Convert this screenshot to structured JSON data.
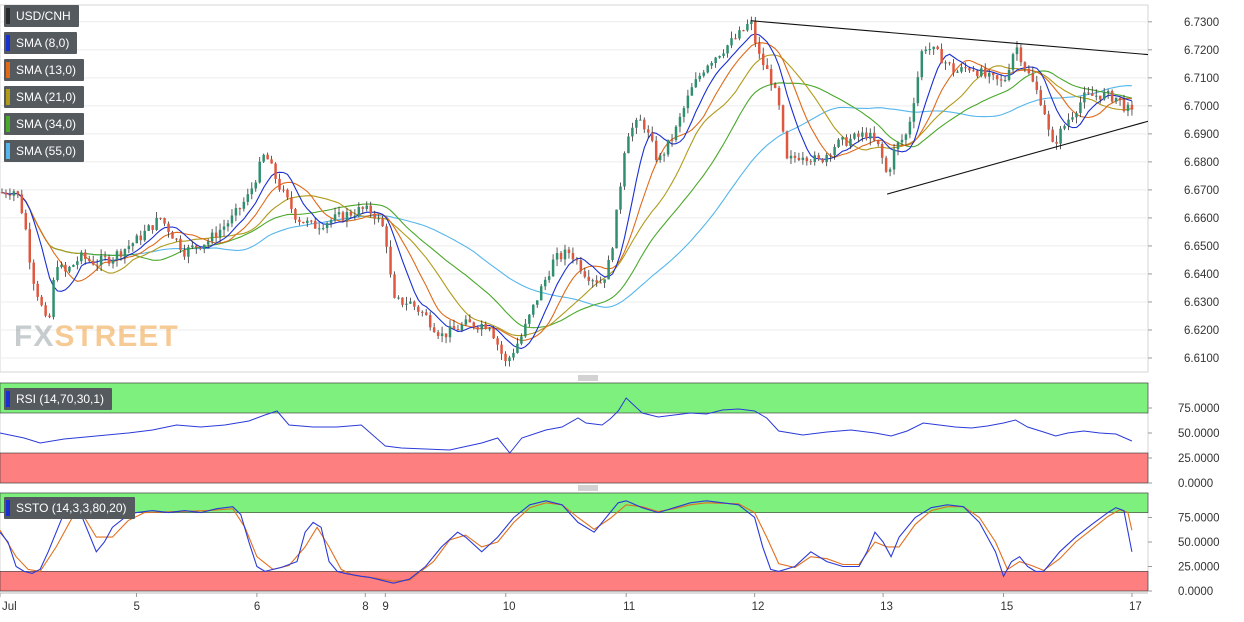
{
  "chart_data": {
    "type": "candlestick",
    "symbol": "USD/CNH",
    "legend": [
      "USD/CNH",
      "SMA (8,0)",
      "SMA (13,0)",
      "SMA (21,0)",
      "SMA (34,0)",
      "SMA (55,0)"
    ],
    "sma_colors": {
      "SMA (8,0)": "#1a2fd0",
      "SMA (13,0)": "#e06a1a",
      "SMA (21,0)": "#b09a1a",
      "SMA (34,0)": "#4aa82a",
      "SMA (55,0)": "#56b6ec"
    },
    "price_axis": {
      "min": 6.605,
      "max": 6.736,
      "ticks": [
        "6.7300",
        "6.7200",
        "6.7100",
        "6.7000",
        "6.6900",
        "6.6800",
        "6.6700",
        "6.6600",
        "6.6500",
        "6.6400",
        "6.6300",
        "6.6200",
        "6.6100"
      ]
    },
    "x_axis": {
      "labels": [
        "Jul",
        "5",
        "6",
        "8",
        "9",
        "10",
        "11",
        "12",
        "13",
        "15",
        "17"
      ],
      "positions": [
        0,
        17,
        32,
        45.5,
        48,
        63,
        78,
        94,
        110,
        125,
        141
      ],
      "range": [
        0,
        143
      ]
    },
    "price_path": [
      [
        0,
        6.669
      ],
      [
        2,
        6.67
      ],
      [
        3,
        6.66
      ],
      [
        4,
        6.64
      ],
      [
        5,
        6.63
      ],
      [
        6,
        6.62
      ],
      [
        7,
        6.645
      ],
      [
        8,
        6.64
      ],
      [
        10,
        6.646
      ],
      [
        12,
        6.644
      ],
      [
        14,
        6.646
      ],
      [
        17,
        6.652
      ],
      [
        20,
        6.66
      ],
      [
        23,
        6.648
      ],
      [
        26,
        6.652
      ],
      [
        29,
        6.66
      ],
      [
        31,
        6.668
      ],
      [
        33,
        6.683
      ],
      [
        35,
        6.67
      ],
      [
        37,
        6.66
      ],
      [
        39,
        6.657
      ],
      [
        42,
        6.66
      ],
      [
        45,
        6.663
      ],
      [
        46.5,
        6.662
      ],
      [
        48,
        6.655
      ],
      [
        49,
        6.63
      ],
      [
        51,
        6.63
      ],
      [
        53,
        6.625
      ],
      [
        55,
        6.618
      ],
      [
        58,
        6.622
      ],
      [
        61,
        6.622
      ],
      [
        62,
        6.615
      ],
      [
        63,
        6.608
      ],
      [
        65,
        6.618
      ],
      [
        67,
        6.632
      ],
      [
        69,
        6.645
      ],
      [
        71,
        6.648
      ],
      [
        73,
        6.64
      ],
      [
        75,
        6.637
      ],
      [
        76,
        6.645
      ],
      [
        77,
        6.665
      ],
      [
        78,
        6.69
      ],
      [
        80,
        6.695
      ],
      [
        82,
        6.68
      ],
      [
        84,
        6.69
      ],
      [
        86,
        6.705
      ],
      [
        88,
        6.715
      ],
      [
        90,
        6.72
      ],
      [
        92,
        6.725
      ],
      [
        93.5,
        6.73
      ],
      [
        94.5,
        6.718
      ],
      [
        96,
        6.71
      ],
      [
        97,
        6.7
      ],
      [
        98,
        6.68
      ],
      [
        100,
        6.683
      ],
      [
        102,
        6.68
      ],
      [
        104,
        6.686
      ],
      [
        106,
        6.688
      ],
      [
        108,
        6.69
      ],
      [
        109.5,
        6.685
      ],
      [
        110.5,
        6.675
      ],
      [
        111.5,
        6.685
      ],
      [
        113,
        6.69
      ],
      [
        114,
        6.705
      ],
      [
        115,
        6.722
      ],
      [
        117,
        6.718
      ],
      [
        119,
        6.712
      ],
      [
        121,
        6.714
      ],
      [
        123,
        6.71
      ],
      [
        125,
        6.708
      ],
      [
        126.5,
        6.722
      ],
      [
        128,
        6.712
      ],
      [
        130,
        6.7
      ],
      [
        131,
        6.685
      ],
      [
        133,
        6.695
      ],
      [
        135,
        6.703
      ],
      [
        137,
        6.704
      ],
      [
        139,
        6.703
      ],
      [
        141,
        6.697
      ]
    ],
    "trendlines": [
      {
        "from": [
          93.5,
          6.7304
        ],
        "to": [
          143,
          6.7183
        ]
      },
      {
        "from": [
          110.5,
          6.6685
        ],
        "to": [
          143,
          6.6945
        ]
      }
    ],
    "rsi": {
      "label": "RSI (14,70,30,1)",
      "ticks": [
        "75.0000",
        "50.0000",
        "25.0000",
        "0.0000"
      ],
      "range": [
        0,
        100
      ],
      "upper": 70,
      "lower": 30,
      "path": [
        [
          0,
          50
        ],
        [
          3,
          45
        ],
        [
          5,
          40
        ],
        [
          8,
          44
        ],
        [
          12,
          47
        ],
        [
          16,
          50
        ],
        [
          19,
          53
        ],
        [
          22,
          58
        ],
        [
          25,
          56
        ],
        [
          28,
          58
        ],
        [
          31,
          62
        ],
        [
          33,
          68
        ],
        [
          34.5,
          72
        ],
        [
          36,
          58
        ],
        [
          39,
          56
        ],
        [
          42,
          56
        ],
        [
          45,
          58
        ],
        [
          48,
          37
        ],
        [
          50,
          35
        ],
        [
          53,
          34
        ],
        [
          56,
          33
        ],
        [
          60,
          40
        ],
        [
          62,
          45
        ],
        [
          63.5,
          30
        ],
        [
          65,
          45
        ],
        [
          68,
          53
        ],
        [
          70,
          56
        ],
        [
          72,
          65
        ],
        [
          73,
          60
        ],
        [
          75,
          58
        ],
        [
          76,
          64
        ],
        [
          77,
          72
        ],
        [
          78,
          85
        ],
        [
          80,
          70
        ],
        [
          82,
          66
        ],
        [
          84,
          68
        ],
        [
          86,
          70
        ],
        [
          88,
          69
        ],
        [
          90,
          73
        ],
        [
          92,
          74
        ],
        [
          94,
          72
        ],
        [
          95.5,
          65
        ],
        [
          97,
          52
        ],
        [
          100,
          48
        ],
        [
          103,
          51
        ],
        [
          106,
          53
        ],
        [
          109,
          50
        ],
        [
          111,
          47
        ],
        [
          113,
          52
        ],
        [
          115,
          60
        ],
        [
          117,
          58
        ],
        [
          119,
          56
        ],
        [
          121,
          55
        ],
        [
          123,
          57
        ],
        [
          125,
          60
        ],
        [
          126.5,
          63
        ],
        [
          128,
          56
        ],
        [
          130,
          51
        ],
        [
          131.5,
          47
        ],
        [
          133,
          50
        ],
        [
          135,
          52
        ],
        [
          137,
          50
        ],
        [
          139,
          49
        ],
        [
          141,
          42
        ]
      ]
    },
    "ssto": {
      "label": "SSTO (14,3,3,80,20)",
      "ticks": [
        "75.0000",
        "50.0000",
        "25.0000",
        "0.0000"
      ],
      "range": [
        0,
        100
      ],
      "upper": 80,
      "lower": 20,
      "k_path": [
        [
          0,
          60
        ],
        [
          1,
          50
        ],
        [
          2,
          25
        ],
        [
          3,
          20
        ],
        [
          4,
          18
        ],
        [
          5,
          22
        ],
        [
          6,
          40
        ],
        [
          7,
          60
        ],
        [
          8,
          80
        ],
        [
          9,
          85
        ],
        [
          10,
          80
        ],
        [
          11,
          60
        ],
        [
          12,
          40
        ],
        [
          13,
          50
        ],
        [
          14,
          65
        ],
        [
          16,
          78
        ],
        [
          17,
          80
        ],
        [
          19,
          82
        ],
        [
          21,
          80
        ],
        [
          23,
          82
        ],
        [
          25,
          80
        ],
        [
          27,
          84
        ],
        [
          29,
          86
        ],
        [
          30,
          78
        ],
        [
          31,
          50
        ],
        [
          32,
          25
        ],
        [
          33,
          20
        ],
        [
          34,
          22
        ],
        [
          35,
          24
        ],
        [
          37,
          30
        ],
        [
          38,
          60
        ],
        [
          39,
          70
        ],
        [
          40,
          65
        ],
        [
          41,
          30
        ],
        [
          42,
          20
        ],
        [
          43,
          18
        ],
        [
          45,
          15
        ],
        [
          46,
          14
        ],
        [
          47,
          12
        ],
        [
          48,
          10
        ],
        [
          49,
          8
        ],
        [
          51,
          12
        ],
        [
          53,
          25
        ],
        [
          55,
          45
        ],
        [
          57,
          60
        ],
        [
          58,
          55
        ],
        [
          60,
          40
        ],
        [
          62,
          55
        ],
        [
          64,
          75
        ],
        [
          66,
          88
        ],
        [
          68,
          92
        ],
        [
          70,
          88
        ],
        [
          72,
          70
        ],
        [
          74,
          60
        ],
        [
          76,
          80
        ],
        [
          77,
          90
        ],
        [
          78,
          92
        ],
        [
          80,
          85
        ],
        [
          82,
          80
        ],
        [
          84,
          85
        ],
        [
          86,
          90
        ],
        [
          88,
          92
        ],
        [
          90,
          90
        ],
        [
          92,
          88
        ],
        [
          94,
          75
        ],
        [
          95,
          45
        ],
        [
          96,
          22
        ],
        [
          97,
          20
        ],
        [
          99,
          25
        ],
        [
          101,
          40
        ],
        [
          103,
          30
        ],
        [
          105,
          25
        ],
        [
          107,
          25
        ],
        [
          108,
          40
        ],
        [
          109,
          60
        ],
        [
          110,
          50
        ],
        [
          111,
          35
        ],
        [
          112,
          55
        ],
        [
          114,
          75
        ],
        [
          116,
          85
        ],
        [
          118,
          88
        ],
        [
          120,
          86
        ],
        [
          122,
          70
        ],
        [
          124,
          40
        ],
        [
          125,
          15
        ],
        [
          126,
          30
        ],
        [
          127,
          35
        ],
        [
          128,
          25
        ],
        [
          129,
          20
        ],
        [
          130,
          20
        ],
        [
          131,
          30
        ],
        [
          132,
          40
        ],
        [
          134,
          55
        ],
        [
          136,
          68
        ],
        [
          138,
          80
        ],
        [
          139,
          85
        ],
        [
          140,
          82
        ],
        [
          141,
          40
        ]
      ],
      "d_path": [
        [
          0,
          62
        ],
        [
          2,
          35
        ],
        [
          3.5,
          22
        ],
        [
          5,
          20
        ],
        [
          7,
          45
        ],
        [
          9,
          75
        ],
        [
          10,
          82
        ],
        [
          12,
          55
        ],
        [
          14,
          55
        ],
        [
          16,
          72
        ],
        [
          18,
          80
        ],
        [
          22,
          81
        ],
        [
          26,
          82
        ],
        [
          29,
          84
        ],
        [
          30.5,
          65
        ],
        [
          32,
          35
        ],
        [
          34,
          22
        ],
        [
          36,
          26
        ],
        [
          38,
          45
        ],
        [
          39.5,
          65
        ],
        [
          41,
          45
        ],
        [
          42.5,
          22
        ],
        [
          44,
          16
        ],
        [
          47,
          13
        ],
        [
          49,
          10
        ],
        [
          51,
          11
        ],
        [
          54,
          30
        ],
        [
          56,
          52
        ],
        [
          58,
          57
        ],
        [
          60,
          45
        ],
        [
          62,
          50
        ],
        [
          64,
          70
        ],
        [
          66,
          85
        ],
        [
          68,
          90
        ],
        [
          70,
          88
        ],
        [
          72,
          75
        ],
        [
          74,
          63
        ],
        [
          76,
          74
        ],
        [
          78,
          88
        ],
        [
          80,
          86
        ],
        [
          82,
          81
        ],
        [
          84,
          84
        ],
        [
          86,
          88
        ],
        [
          88,
          90
        ],
        [
          92,
          89
        ],
        [
          94,
          80
        ],
        [
          95.5,
          55
        ],
        [
          97,
          28
        ],
        [
          99,
          24
        ],
        [
          101,
          35
        ],
        [
          103,
          33
        ],
        [
          105,
          27
        ],
        [
          107,
          27
        ],
        [
          109,
          50
        ],
        [
          110.5,
          45
        ],
        [
          112,
          45
        ],
        [
          114,
          68
        ],
        [
          116,
          82
        ],
        [
          118,
          86
        ],
        [
          120,
          86
        ],
        [
          122,
          75
        ],
        [
          124,
          50
        ],
        [
          125.5,
          22
        ],
        [
          127,
          30
        ],
        [
          128.5,
          26
        ],
        [
          130,
          21
        ],
        [
          132,
          33
        ],
        [
          134,
          50
        ],
        [
          136,
          63
        ],
        [
          138,
          76
        ],
        [
          139.5,
          83
        ],
        [
          140.5,
          80
        ],
        [
          141,
          62
        ]
      ]
    }
  },
  "watermark": {
    "part1": "FX",
    "part2": "STREET"
  }
}
